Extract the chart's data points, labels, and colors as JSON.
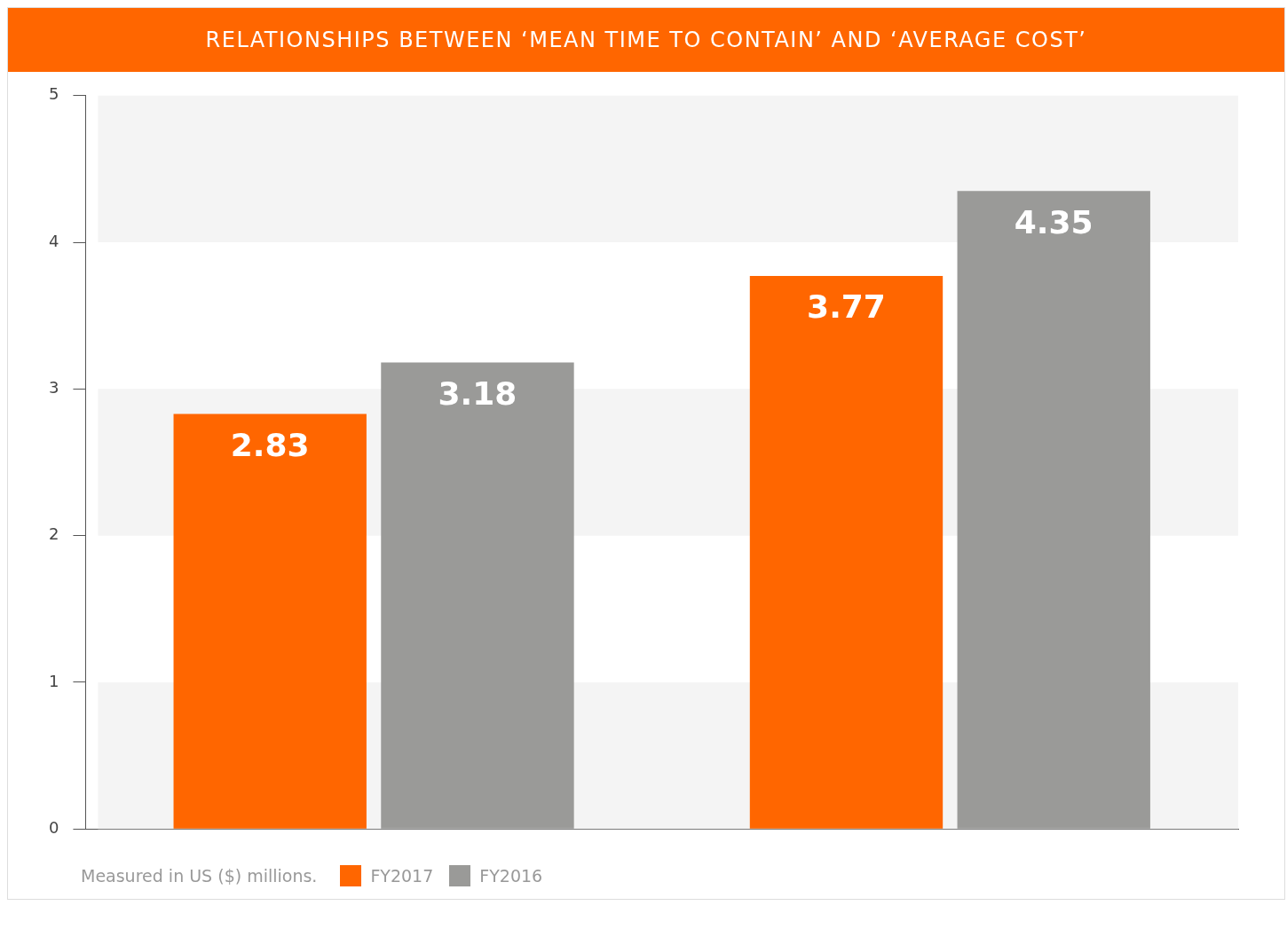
{
  "chart_data": {
    "type": "bar",
    "title": "RELATIONSHIPS BETWEEN ‘MEAN TIME TO CONTAIN’ AND ‘AVERAGE COST’",
    "categories": [
      null,
      null
    ],
    "series": [
      {
        "name": "FY2017",
        "color": "#ff6600",
        "values": [
          2.83,
          3.77
        ]
      },
      {
        "name": "FY2016",
        "color": "#9a9a98",
        "values": [
          3.18,
          4.35
        ]
      }
    ],
    "ylim": [
      0,
      5
    ],
    "yticks": [
      0,
      1,
      2,
      3,
      4,
      5
    ],
    "grid": false,
    "data_labels": true,
    "legend": "bottom left",
    "bands": [
      {
        "axis": "y",
        "from": 0,
        "to": 1,
        "color": "#f4f4f4"
      },
      {
        "axis": "y",
        "from": 2,
        "to": 3,
        "color": "#f4f4f4"
      },
      {
        "axis": "y",
        "from": 4,
        "to": 5,
        "color": "#f4f4f4"
      }
    ],
    "annotations": [
      "Measured in US ($) millions."
    ]
  }
}
